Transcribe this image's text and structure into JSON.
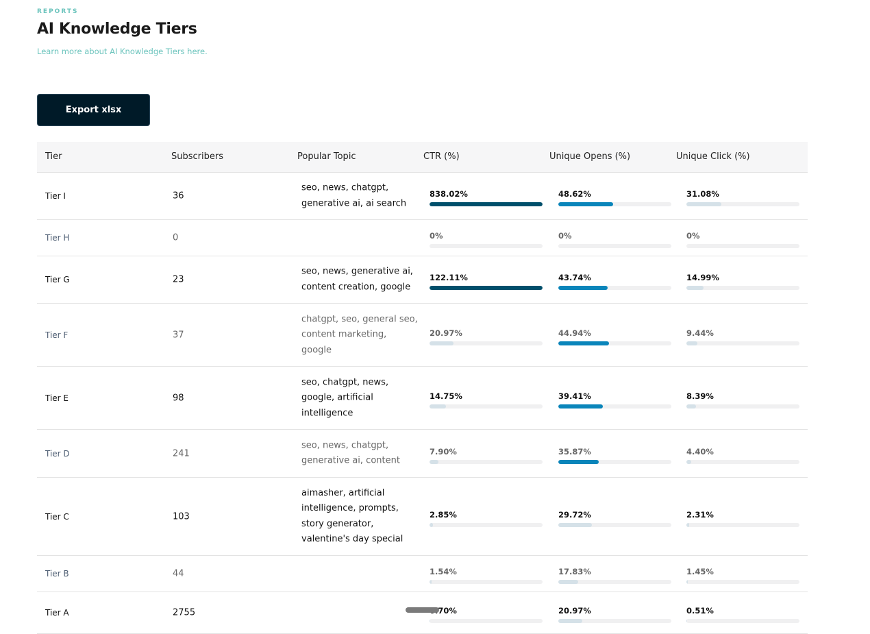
{
  "header": {
    "eyebrow": "REPORTS",
    "title": "AI Knowledge Tiers",
    "learn_link": "Learn more about AI Knowledge Tiers here.",
    "export_label": "Export xlsx"
  },
  "colors": {
    "dark": "#004f6b",
    "blue": "#0a85ba",
    "light": "#d5e1e8",
    "track": "#f0f0f1",
    "accent": "#6cc4bd"
  },
  "table": {
    "columns": [
      "Tier",
      "Subscribers",
      "Popular Topic",
      "CTR (%)",
      "Unique Opens (%)",
      "Unique Click (%)"
    ],
    "rows": [
      {
        "tier": "Tier I",
        "subscribers": "36",
        "topic": "seo, news, chatgpt, generative ai, ai search",
        "ctr": {
          "value": "838.02%",
          "fill": 100,
          "tone": "dark"
        },
        "opens": {
          "value": "48.62%",
          "fill": 48.62,
          "tone": "blue"
        },
        "clicks": {
          "value": "31.08%",
          "fill": 31.08,
          "tone": "light"
        }
      },
      {
        "tier": "Tier H",
        "subscribers": "0",
        "topic": "",
        "ctr": {
          "value": "0%",
          "fill": 0,
          "tone": "light"
        },
        "opens": {
          "value": "0%",
          "fill": 0,
          "tone": "light"
        },
        "clicks": {
          "value": "0%",
          "fill": 0,
          "tone": "light"
        }
      },
      {
        "tier": "Tier G",
        "subscribers": "23",
        "topic": "seo, news, generative ai, content creation, google",
        "ctr": {
          "value": "122.11%",
          "fill": 100,
          "tone": "dark"
        },
        "opens": {
          "value": "43.74%",
          "fill": 43.74,
          "tone": "blue"
        },
        "clicks": {
          "value": "14.99%",
          "fill": 14.99,
          "tone": "light"
        }
      },
      {
        "tier": "Tier F",
        "subscribers": "37",
        "topic": "chatgpt, seo, general seo, content marketing, google",
        "ctr": {
          "value": "20.97%",
          "fill": 20.97,
          "tone": "light"
        },
        "opens": {
          "value": "44.94%",
          "fill": 44.94,
          "tone": "blue"
        },
        "clicks": {
          "value": "9.44%",
          "fill": 9.44,
          "tone": "light"
        }
      },
      {
        "tier": "Tier E",
        "subscribers": "98",
        "topic": "seo, chatgpt, news, google, artificial intelligence",
        "ctr": {
          "value": "14.75%",
          "fill": 14.75,
          "tone": "light"
        },
        "opens": {
          "value": "39.41%",
          "fill": 39.41,
          "tone": "blue"
        },
        "clicks": {
          "value": "8.39%",
          "fill": 8.39,
          "tone": "light"
        }
      },
      {
        "tier": "Tier D",
        "subscribers": "241",
        "topic": "seo, news, chatgpt, generative ai, content",
        "ctr": {
          "value": "7.90%",
          "fill": 7.9,
          "tone": "light"
        },
        "opens": {
          "value": "35.87%",
          "fill": 35.87,
          "tone": "blue"
        },
        "clicks": {
          "value": "4.40%",
          "fill": 4.4,
          "tone": "light"
        }
      },
      {
        "tier": "Tier C",
        "subscribers": "103",
        "topic": "aimasher, artificial intelligence, prompts, story generator, valentine's day special",
        "ctr": {
          "value": "2.85%",
          "fill": 2.85,
          "tone": "light"
        },
        "opens": {
          "value": "29.72%",
          "fill": 29.72,
          "tone": "light"
        },
        "clicks": {
          "value": "2.31%",
          "fill": 2.31,
          "tone": "light"
        }
      },
      {
        "tier": "Tier B",
        "subscribers": "44",
        "topic": "",
        "ctr": {
          "value": "1.54%",
          "fill": 1.54,
          "tone": "light"
        },
        "opens": {
          "value": "17.83%",
          "fill": 17.83,
          "tone": "light"
        },
        "clicks": {
          "value": "1.45%",
          "fill": 1.45,
          "tone": "light"
        }
      },
      {
        "tier": "Tier A",
        "subscribers": "2755",
        "topic": "",
        "ctr": {
          "value": "0.70%",
          "fill": 0.7,
          "tone": "light"
        },
        "opens": {
          "value": "20.97%",
          "fill": 20.97,
          "tone": "light"
        },
        "clicks": {
          "value": "0.51%",
          "fill": 0.51,
          "tone": "light"
        }
      }
    ]
  }
}
